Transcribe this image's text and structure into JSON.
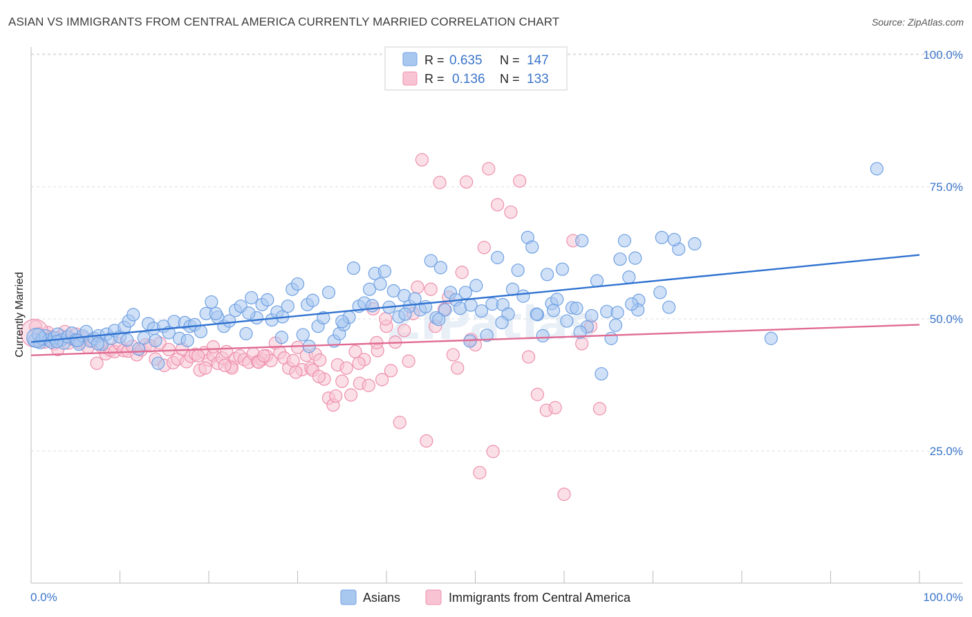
{
  "header": {
    "title": "ASIAN VS IMMIGRANTS FROM CENTRAL AMERICA CURRENTLY MARRIED CORRELATION CHART",
    "source": "Source: ZipAtlas.com"
  },
  "watermark": "ZIPatlas",
  "chart_data": {
    "type": "scatter",
    "ylabel": "Currently Married",
    "xlabel": "",
    "xlim": [
      0,
      100
    ],
    "ylim": [
      0,
      103
    ],
    "x_tick_labels": {
      "left": "0.0%",
      "right": "100.0%"
    },
    "y_ticks": [
      {
        "value": 25,
        "label": "25.0%"
      },
      {
        "value": 50,
        "label": "50.0%"
      },
      {
        "value": 75,
        "label": "75.0%"
      },
      {
        "value": 100,
        "label": "100.0%"
      }
    ],
    "legend_stats": [
      {
        "series": "Asians",
        "r_label": "R =",
        "r": "0.635",
        "n_label": "N =",
        "n": "147"
      },
      {
        "series": "Immigrants from Central America",
        "r_label": "R =",
        "r": "0.136",
        "n_label": "N =",
        "n": "133"
      }
    ],
    "series": [
      {
        "name": "Asians",
        "color": "#6fa0e2",
        "fill": "#a9c8f0",
        "trend_color": "#2f72d0",
        "trend": {
          "x": [
            0,
            100
          ],
          "y": [
            45.6,
            62.1
          ]
        },
        "points": [
          [
            0.4,
            46
          ],
          [
            0.8,
            47
          ],
          [
            1.0,
            45.5
          ],
          [
            1.3,
            46.2
          ],
          [
            1.6,
            46.8
          ],
          [
            2.0,
            46
          ],
          [
            2.3,
            45.6
          ],
          [
            2.6,
            46.4
          ],
          [
            3.0,
            47.1
          ],
          [
            3.4,
            46
          ],
          [
            3.7,
            45.4
          ],
          [
            4.1,
            46.6
          ],
          [
            4.6,
            47.3
          ],
          [
            5.0,
            46
          ],
          [
            5.4,
            45.2
          ],
          [
            5.8,
            46.8
          ],
          [
            6.2,
            47.6
          ],
          [
            6.7,
            45.8
          ],
          [
            7.1,
            46.3
          ],
          [
            7.6,
            46.8
          ],
          [
            8.0,
            45.2
          ],
          [
            8.5,
            47.1
          ],
          [
            9.0,
            46.3
          ],
          [
            9.4,
            47.8
          ],
          [
            10.0,
            46.6
          ],
          [
            10.5,
            48.4
          ],
          [
            11.0,
            49.6
          ],
          [
            11.5,
            50.8
          ],
          [
            12.1,
            44.3
          ],
          [
            12.7,
            46.4
          ],
          [
            13.2,
            49.1
          ],
          [
            13.8,
            48.2
          ],
          [
            14.3,
            41.6
          ],
          [
            14.9,
            48.6
          ],
          [
            15.5,
            47.4
          ],
          [
            16.1,
            49.5
          ],
          [
            16.7,
            46.3
          ],
          [
            17.3,
            49.3
          ],
          [
            17.9,
            48.6
          ],
          [
            18.4,
            48.9
          ],
          [
            19.1,
            47.6
          ],
          [
            19.7,
            51.0
          ],
          [
            20.3,
            53.2
          ],
          [
            21.0,
            50.3
          ],
          [
            21.7,
            48.6
          ],
          [
            22.3,
            49.6
          ],
          [
            23.0,
            51.6
          ],
          [
            23.6,
            52.4
          ],
          [
            24.2,
            47.2
          ],
          [
            24.8,
            54.0
          ],
          [
            25.4,
            50.2
          ],
          [
            26.0,
            52.7
          ],
          [
            26.6,
            53.6
          ],
          [
            27.1,
            49.8
          ],
          [
            27.7,
            51.3
          ],
          [
            28.3,
            50.4
          ],
          [
            28.9,
            52.4
          ],
          [
            29.4,
            55.6
          ],
          [
            30.0,
            56.6
          ],
          [
            30.6,
            47.0
          ],
          [
            31.1,
            52.7
          ],
          [
            31.7,
            53.5
          ],
          [
            32.3,
            48.6
          ],
          [
            32.9,
            50.2
          ],
          [
            33.5,
            55.0
          ],
          [
            34.1,
            45.8
          ],
          [
            34.7,
            47.2
          ],
          [
            35.2,
            48.9
          ],
          [
            35.8,
            50.3
          ],
          [
            36.3,
            59.6
          ],
          [
            36.9,
            52.4
          ],
          [
            37.5,
            53.0
          ],
          [
            38.1,
            55.6
          ],
          [
            38.7,
            58.6
          ],
          [
            39.3,
            56.6
          ],
          [
            39.8,
            59.0
          ],
          [
            40.3,
            52.2
          ],
          [
            40.8,
            55.3
          ],
          [
            41.4,
            50.4
          ],
          [
            42.0,
            54.4
          ],
          [
            42.6,
            52.4
          ],
          [
            43.2,
            53.8
          ],
          [
            43.8,
            51.7
          ],
          [
            44.4,
            52.3
          ],
          [
            45.0,
            61.0
          ],
          [
            45.6,
            50.2
          ],
          [
            46.1,
            59.7
          ],
          [
            46.6,
            51.7
          ],
          [
            47.2,
            55.0
          ],
          [
            47.8,
            53.6
          ],
          [
            48.3,
            52.0
          ],
          [
            48.9,
            55.0
          ],
          [
            49.5,
            52.6
          ],
          [
            50.1,
            56.3
          ],
          [
            50.7,
            51.5
          ],
          [
            51.3,
            46.9
          ],
          [
            51.9,
            52.8
          ],
          [
            52.5,
            61.6
          ],
          [
            53.1,
            52.7
          ],
          [
            53.7,
            50.9
          ],
          [
            54.2,
            55.6
          ],
          [
            54.8,
            59.2
          ],
          [
            55.4,
            54.3
          ],
          [
            55.9,
            65.4
          ],
          [
            56.4,
            63.6
          ],
          [
            57.0,
            50.8
          ],
          [
            57.6,
            46.8
          ],
          [
            58.1,
            58.4
          ],
          [
            58.6,
            52.9
          ],
          [
            59.2,
            53.7
          ],
          [
            59.8,
            59.4
          ],
          [
            60.3,
            49.6
          ],
          [
            60.9,
            52.1
          ],
          [
            61.4,
            52.0
          ],
          [
            62.0,
            64.8
          ],
          [
            62.6,
            48.5
          ],
          [
            63.1,
            50.6
          ],
          [
            63.7,
            57.2
          ],
          [
            64.2,
            39.6
          ],
          [
            64.8,
            51.4
          ],
          [
            65.3,
            46.3
          ],
          [
            65.8,
            48.8
          ],
          [
            66.3,
            61.3
          ],
          [
            66.8,
            64.8
          ],
          [
            67.3,
            57.9
          ],
          [
            68.0,
            61.5
          ],
          [
            68.4,
            53.5
          ],
          [
            70.8,
            55.0
          ],
          [
            71.0,
            65.4
          ],
          [
            72.9,
            63.2
          ],
          [
            72.4,
            65.0
          ],
          [
            74.7,
            64.2
          ],
          [
            71.8,
            52.2
          ],
          [
            68.3,
            51.7
          ],
          [
            67.6,
            52.8
          ],
          [
            66.0,
            51.2
          ],
          [
            61.8,
            47.5
          ],
          [
            58.8,
            51.6
          ],
          [
            56.9,
            50.9
          ],
          [
            53.0,
            49.3
          ],
          [
            49.4,
            45.8
          ],
          [
            45.9,
            49.9
          ],
          [
            42.1,
            50.9
          ],
          [
            38.4,
            52.5
          ],
          [
            35.0,
            49.5
          ],
          [
            31.3,
            44.8
          ],
          [
            28.2,
            46.5
          ],
          [
            24.5,
            51.1
          ],
          [
            20.8,
            51.0
          ],
          [
            17.6,
            45.9
          ],
          [
            14.0,
            45.9
          ],
          [
            10.8,
            46.0
          ],
          [
            7.5,
            45.3
          ],
          [
            83.3,
            46.3
          ],
          [
            95.2,
            78.4
          ],
          [
            2.9,
            45.7
          ],
          [
            5.2,
            45.9
          ]
        ]
      },
      {
        "name": "Immigrants from Central America",
        "color": "#ee8fad",
        "fill": "#f8c4d3",
        "trend_color": "#e06b93",
        "trend": {
          "x": [
            0,
            100
          ],
          "y": [
            43.1,
            48.9
          ]
        },
        "points": [
          [
            0.5,
            48.5
          ],
          [
            0.9,
            47.2
          ],
          [
            1.2,
            46.3
          ],
          [
            1.5,
            45.6
          ],
          [
            1.9,
            47.4
          ],
          [
            2.2,
            46.6
          ],
          [
            2.6,
            45.3
          ],
          [
            3.0,
            44.2
          ],
          [
            3.4,
            46.8
          ],
          [
            3.8,
            47.6
          ],
          [
            4.2,
            45.4
          ],
          [
            4.6,
            46.2
          ],
          [
            5.1,
            47.1
          ],
          [
            5.5,
            45.5
          ],
          [
            5.9,
            46.4
          ],
          [
            6.4,
            44.6
          ],
          [
            6.9,
            45.9
          ],
          [
            7.4,
            41.6
          ],
          [
            7.9,
            44.8
          ],
          [
            8.4,
            43.4
          ],
          [
            8.9,
            44.1
          ],
          [
            9.4,
            43.8
          ],
          [
            9.9,
            45.3
          ],
          [
            10.4,
            44.0
          ],
          [
            10.9,
            43.9
          ],
          [
            11.4,
            44.8
          ],
          [
            11.9,
            43.2
          ],
          [
            12.4,
            44.1
          ],
          [
            12.9,
            45.1
          ],
          [
            13.4,
            44.9
          ],
          [
            14.0,
            42.4
          ],
          [
            14.5,
            45.4
          ],
          [
            15.0,
            41.2
          ],
          [
            15.5,
            44.2
          ],
          [
            16.0,
            41.7
          ],
          [
            16.5,
            42.4
          ],
          [
            17.0,
            44.3
          ],
          [
            17.5,
            41.9
          ],
          [
            18.0,
            42.9
          ],
          [
            18.5,
            43.3
          ],
          [
            19.0,
            40.3
          ],
          [
            19.5,
            43.6
          ],
          [
            20.0,
            42.2
          ],
          [
            20.5,
            43.1
          ],
          [
            21.0,
            41.6
          ],
          [
            21.5,
            42.6
          ],
          [
            22.0,
            43.8
          ],
          [
            22.5,
            41.0
          ],
          [
            23.0,
            42.5
          ],
          [
            23.5,
            43.0
          ],
          [
            24.0,
            42.3
          ],
          [
            24.5,
            41.8
          ],
          [
            25.0,
            43.4
          ],
          [
            25.5,
            41.9
          ],
          [
            26.0,
            42.3
          ],
          [
            26.5,
            43.0
          ],
          [
            27.0,
            42.1
          ],
          [
            27.5,
            45.4
          ],
          [
            28.0,
            43.6
          ],
          [
            28.5,
            42.6
          ],
          [
            29.0,
            40.7
          ],
          [
            29.5,
            42.1
          ],
          [
            30.0,
            44.6
          ],
          [
            30.5,
            40.4
          ],
          [
            31.0,
            43.1
          ],
          [
            31.5,
            40.7
          ],
          [
            32.0,
            43.3
          ],
          [
            32.5,
            42.2
          ],
          [
            33.0,
            38.6
          ],
          [
            33.5,
            35.0
          ],
          [
            34.0,
            33.7
          ],
          [
            34.5,
            41.3
          ],
          [
            35.0,
            38.2
          ],
          [
            35.5,
            40.7
          ],
          [
            36.0,
            35.6
          ],
          [
            36.5,
            43.8
          ],
          [
            37.0,
            37.8
          ],
          [
            37.5,
            42.3
          ],
          [
            38.0,
            37.4
          ],
          [
            38.5,
            51.9
          ],
          [
            39.0,
            44.0
          ],
          [
            39.5,
            38.5
          ],
          [
            40.0,
            48.6
          ],
          [
            40.5,
            40.2
          ],
          [
            41.0,
            45.6
          ],
          [
            41.5,
            30.4
          ],
          [
            42.0,
            47.8
          ],
          [
            42.5,
            42.0
          ],
          [
            43.0,
            51.0
          ],
          [
            43.5,
            56.0
          ],
          [
            44.0,
            80.1
          ],
          [
            44.5,
            26.9
          ],
          [
            45.0,
            55.6
          ],
          [
            45.5,
            48.6
          ],
          [
            46.0,
            75.8
          ],
          [
            46.5,
            51.8
          ],
          [
            47.0,
            54.1
          ],
          [
            47.5,
            43.2
          ],
          [
            48.0,
            40.7
          ],
          [
            48.5,
            58.8
          ],
          [
            49.0,
            75.9
          ],
          [
            49.5,
            46.1
          ],
          [
            50.0,
            45.1
          ],
          [
            50.5,
            20.9
          ],
          [
            51.0,
            63.5
          ],
          [
            51.5,
            78.4
          ],
          [
            52.0,
            24.9
          ],
          [
            52.5,
            71.6
          ],
          [
            54.0,
            70.2
          ],
          [
            55.0,
            76.1
          ],
          [
            56.0,
            42.8
          ],
          [
            57.0,
            35.7
          ],
          [
            58.0,
            32.7
          ],
          [
            59.0,
            33.2
          ],
          [
            60.0,
            16.8
          ],
          [
            61.0,
            64.8
          ],
          [
            62.0,
            45.3
          ],
          [
            63.0,
            48.6
          ],
          [
            64.0,
            33.0
          ],
          [
            36.9,
            41.6
          ],
          [
            38.9,
            45.5
          ],
          [
            39.9,
            50.0
          ],
          [
            29.8,
            39.9
          ],
          [
            31.7,
            40.3
          ],
          [
            32.4,
            39.1
          ],
          [
            34.3,
            35.4
          ],
          [
            25.6,
            41.8
          ],
          [
            26.2,
            43.0
          ],
          [
            22.6,
            40.7
          ],
          [
            21.8,
            41.2
          ],
          [
            19.6,
            40.7
          ],
          [
            18.8,
            43.0
          ],
          [
            20.5,
            44.7
          ]
        ]
      }
    ]
  },
  "bottom_legend": [
    {
      "label": "Asians"
    },
    {
      "label": "Immigrants from Central America"
    }
  ]
}
